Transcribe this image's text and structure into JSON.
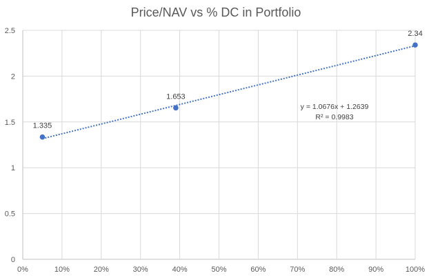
{
  "chart_data": {
    "type": "scatter",
    "title": "Price/NAV vs % DC in Portfolio",
    "xlabel": "",
    "ylabel": "",
    "xlim": [
      0,
      1
    ],
    "ylim": [
      0,
      2.5
    ],
    "grid": true,
    "legend": "none",
    "x_ticks": [
      "0%",
      "10%",
      "20%",
      "30%",
      "40%",
      "50%",
      "60%",
      "70%",
      "80%",
      "90%",
      "100%"
    ],
    "y_ticks": [
      "0",
      "0.5",
      "1",
      "1.5",
      "2",
      "2.5"
    ],
    "series": [
      {
        "points": [
          {
            "x": 0.05,
            "y": 1.335,
            "label": "1.335"
          },
          {
            "x": 0.39,
            "y": 1.653,
            "label": "1.653"
          },
          {
            "x": 1.0,
            "y": 2.34,
            "label": "2.34"
          }
        ]
      }
    ],
    "trendline": {
      "type": "linear",
      "slope": 1.0676,
      "intercept": 1.2639,
      "x_start": 0.05,
      "x_end": 1.0,
      "equation": "y = 1.0676x + 1.2639",
      "r_squared": "R² = 0.9983"
    },
    "colors": {
      "series": "#4472c4",
      "grid": "#d9d9d9",
      "text": "#595959"
    }
  }
}
